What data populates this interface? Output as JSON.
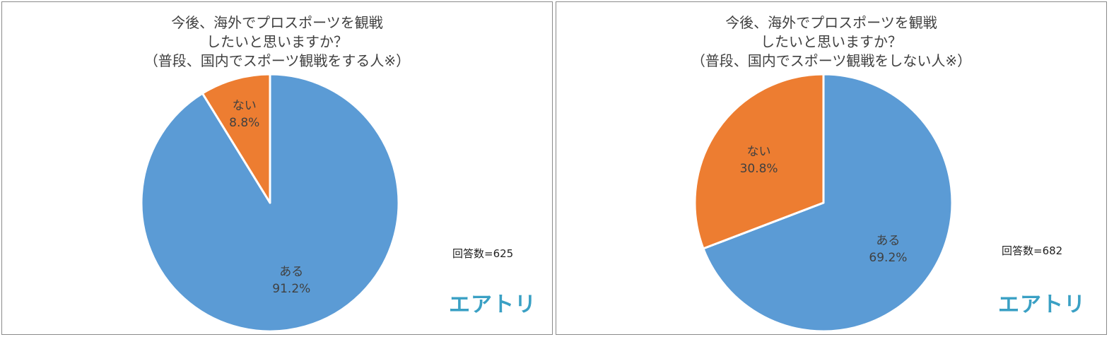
{
  "chart_data": [
    {
      "type": "pie",
      "title_lines": [
        "今後、海外でプロスポーツを観戦",
        "したいと思いますか？",
        "（普段、国内でスポーツ観戦をする人※）"
      ],
      "slices": [
        {
          "label": "ある",
          "value": 91.2,
          "display": "91.2%",
          "color": "#5b9bd5"
        },
        {
          "label": "ない",
          "value": 8.8,
          "display": "8.8%",
          "color": "#ed7d31"
        }
      ],
      "responses": "回答数=625",
      "logo": "エアトリ"
    },
    {
      "type": "pie",
      "title_lines": [
        "今後、海外でプロスポーツを観戦",
        "したいと思いますか？",
        "（普段、国内でスポーツ観戦をしない人※）"
      ],
      "slices": [
        {
          "label": "ある",
          "value": 69.2,
          "display": "69.2%",
          "color": "#5b9bd5"
        },
        {
          "label": "ない",
          "value": 30.8,
          "display": "30.8%",
          "color": "#ed7d31"
        }
      ],
      "responses": "回答数=682",
      "logo": "エアトリ"
    }
  ]
}
